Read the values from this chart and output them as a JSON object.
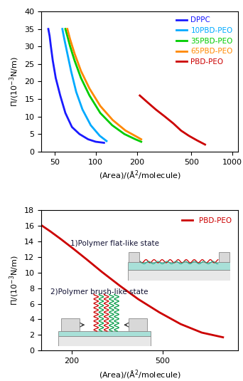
{
  "top_panel": {
    "ylim": [
      0,
      40
    ],
    "xlim": [
      40,
      1100
    ],
    "xticks": [
      50,
      100,
      200,
      500,
      1000
    ],
    "xticklabels": [
      "50",
      "100",
      "200",
      "500",
      "1000"
    ],
    "yticks": [
      0,
      5,
      10,
      15,
      20,
      25,
      30,
      35,
      40
    ],
    "xlabel": "(Area)/(Å²/molecule)",
    "ylabel": "Π/(10⁻³N/m)",
    "dppc_x": [
      45,
      46,
      47,
      48.5,
      51,
      55,
      60,
      67,
      76,
      88,
      100,
      115
    ],
    "dppc_pi": [
      35,
      33,
      30,
      26,
      21,
      16,
      11,
      7,
      5,
      3.5,
      2.8,
      2.5
    ],
    "x10_x": [
      57,
      59,
      62,
      66,
      72,
      80,
      92,
      107,
      120
    ],
    "x10_pi": [
      35,
      32,
      28,
      23,
      17,
      12,
      7.5,
      4.5,
      3.0
    ],
    "x35_x": [
      60,
      62,
      65,
      70,
      78,
      90,
      108,
      132,
      162,
      195,
      215
    ],
    "x35_pi": [
      35,
      33,
      30,
      26,
      21,
      16,
      11,
      7.5,
      5,
      3.5,
      2.8
    ],
    "x65_x": [
      62,
      65,
      70,
      78,
      90,
      108,
      133,
      165,
      200,
      215
    ],
    "x65_pi": [
      35,
      32,
      28,
      23,
      18,
      13,
      9,
      6,
      4.2,
      3.5
    ],
    "pbd_x": [
      210,
      240,
      275,
      320,
      370,
      420,
      480,
      550,
      630
    ],
    "pbd_pi": [
      16,
      14,
      12,
      10,
      8,
      6,
      4.5,
      3.2,
      2.0
    ],
    "legend_labels": [
      "DPPC",
      "10PBD-PEO",
      "35PBD-PEO",
      "65PBD-PEO",
      "PBD-PEO"
    ],
    "legend_colors": [
      "#1a1aff",
      "#00aaff",
      "#00cc00",
      "#ff8800",
      "#cc0000"
    ]
  },
  "bottom_panel": {
    "xlim": [
      100,
      750
    ],
    "ylim": [
      0,
      18
    ],
    "xticks": [
      200,
      500
    ],
    "xticklabels": [
      "200",
      "500"
    ],
    "yticks": [
      0,
      2,
      4,
      6,
      8,
      10,
      12,
      14,
      16,
      18
    ],
    "xlabel": "(Area)/(Å²/molecule)",
    "ylabel": "Π/(10⁻³N/m)",
    "curve_color": "#cc0000",
    "curve_x": [
      100,
      130,
      165,
      205,
      250,
      300,
      360,
      420,
      490,
      560,
      630,
      700
    ],
    "curve_pi": [
      16.1,
      15.3,
      14.3,
      13.1,
      11.7,
      10.1,
      8.3,
      6.6,
      4.9,
      3.4,
      2.3,
      1.7
    ],
    "label": "PBD-PEO",
    "annotation1": "1)Polymer flat-like state",
    "annotation2": "2)Polymer brush-like state"
  }
}
